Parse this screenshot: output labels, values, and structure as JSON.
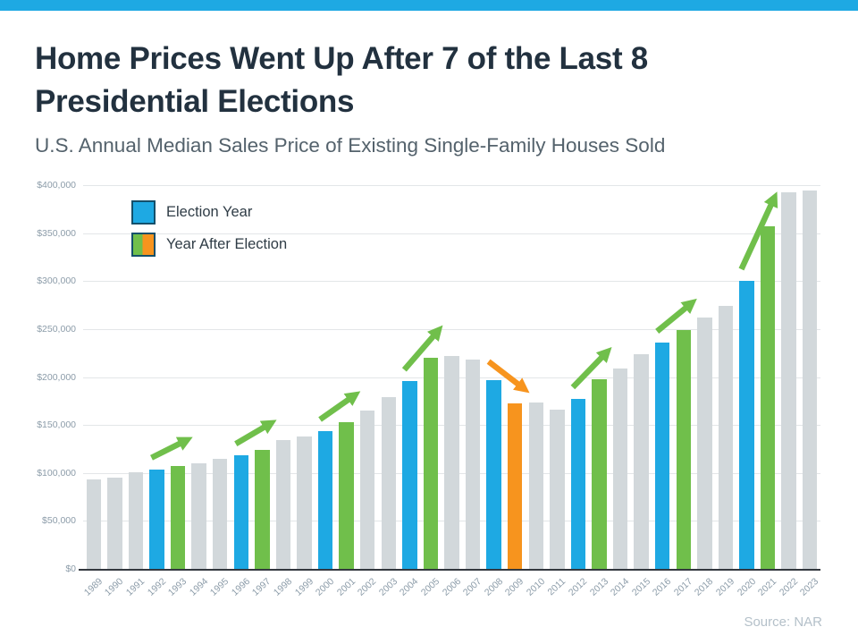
{
  "brand": {
    "accent_color": "#1EA9E3"
  },
  "header": {
    "title_lines": [
      "Home Prices Went Up After 7 of the Last 8",
      "Presidential Elections"
    ],
    "subtitle": "U.S. Annual Median Sales Price of Existing Single-Family Houses Sold"
  },
  "legend": {
    "items": [
      {
        "label": "Election Year",
        "colors": [
          "#1EA9E3"
        ]
      },
      {
        "label": "Year After Election",
        "colors": [
          "#70BF4B",
          "#F7941E"
        ]
      }
    ]
  },
  "footer": {
    "source": "Source: NAR"
  },
  "chart_data": {
    "type": "bar",
    "title": "Home Prices Went Up After 7 of the Last 8 Presidential Elections",
    "subtitle": "U.S. Annual Median Sales Price of Existing Single-Family Houses Sold",
    "source": "Source: NAR",
    "xlabel": "",
    "ylabel": "",
    "ylim": [
      0,
      400000
    ],
    "grid": "horizontal",
    "legend_position": "top-left-inside",
    "categories": [
      "1989",
      "1990",
      "1991",
      "1992",
      "1993",
      "1994",
      "1995",
      "1996",
      "1997",
      "1998",
      "1999",
      "2000",
      "2001",
      "2002",
      "2003",
      "2004",
      "2005",
      "2006",
      "2007",
      "2008",
      "2009",
      "2010",
      "2011",
      "2012",
      "2013",
      "2014",
      "2015",
      "2016",
      "2017",
      "2018",
      "2019",
      "2020",
      "2021",
      "2022",
      "2023"
    ],
    "values": [
      93100,
      95500,
      100300,
      103700,
      106800,
      109900,
      114600,
      118200,
      124100,
      133900,
      138000,
      143600,
      153100,
      165000,
      178800,
      195400,
      219600,
      221900,
      217900,
      196600,
      172100,
      173100,
      166200,
      177200,
      197400,
      208900,
      223900,
      235500,
      248800,
      261600,
      274600,
      300200,
      357100,
      392800,
      394300
    ],
    "roles": [
      "other",
      "other",
      "other",
      "election",
      "after",
      "other",
      "other",
      "election",
      "after",
      "other",
      "other",
      "election",
      "after",
      "other",
      "other",
      "election",
      "after",
      "other",
      "other",
      "election",
      "after_down",
      "other",
      "other",
      "election",
      "after",
      "other",
      "other",
      "election",
      "after",
      "other",
      "other",
      "election",
      "after",
      "other",
      "other"
    ],
    "colors": {
      "election": "#1EA9E3",
      "after": "#70BF4B",
      "after_down": "#F7941E",
      "other": "#D2D8DB"
    },
    "yticks": [
      {
        "value": 0,
        "label": "$0"
      },
      {
        "value": 50000,
        "label": "$50,000"
      },
      {
        "value": 100000,
        "label": "$100,000"
      },
      {
        "value": 150000,
        "label": "$150,000"
      },
      {
        "value": 200000,
        "label": "$200,000"
      },
      {
        "value": 250000,
        "label": "$250,000"
      },
      {
        "value": 300000,
        "label": "$300,000"
      },
      {
        "value": 350000,
        "label": "$350,000"
      },
      {
        "value": 400000,
        "label": "$400,000"
      }
    ],
    "arrows": [
      {
        "from": "1992",
        "to": "1993",
        "dir": "up"
      },
      {
        "from": "1996",
        "to": "1997",
        "dir": "up"
      },
      {
        "from": "2000",
        "to": "2001",
        "dir": "up"
      },
      {
        "from": "2004",
        "to": "2005",
        "dir": "up"
      },
      {
        "from": "2008",
        "to": "2009",
        "dir": "down"
      },
      {
        "from": "2012",
        "to": "2013",
        "dir": "up"
      },
      {
        "from": "2016",
        "to": "2017",
        "dir": "up"
      },
      {
        "from": "2020",
        "to": "2021",
        "dir": "up"
      }
    ]
  }
}
